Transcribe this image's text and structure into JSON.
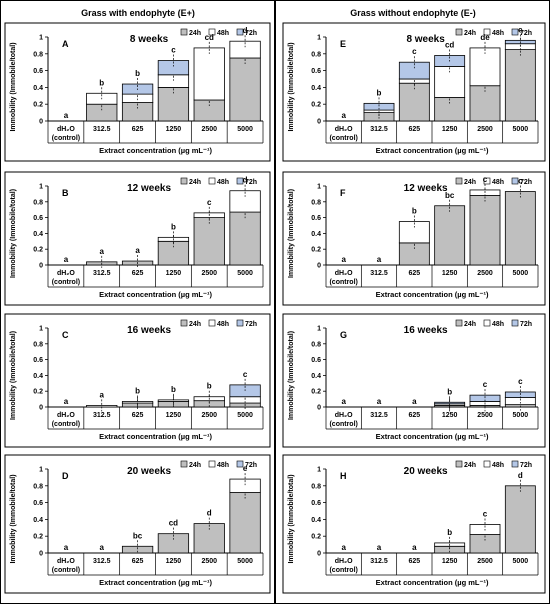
{
  "headers": {
    "left": "Grass with endophyte (E+)",
    "right": "Grass without endophyte (E-)"
  },
  "legend": {
    "items": [
      "24h",
      "48h",
      "72h"
    ]
  },
  "common": {
    "categories": [
      "dH₂O\n(control)",
      "312.5",
      "625",
      "1250",
      "2500",
      "5000"
    ],
    "xlabel": "Extract concentration (µg mL⁻¹)",
    "ylabel": "Immobility (Immobile/total)",
    "yticks": [
      "0",
      "0.2",
      "0.4",
      "0.6",
      "0.8",
      "1"
    ]
  },
  "colors": {
    "24h": "#bfbfbf",
    "48h": "#ffffff",
    "72h": "#b4c7e7",
    "axis": "#000000",
    "border": "#000000"
  },
  "chart_data": [
    {
      "type": "bar",
      "panel": "A",
      "title": "8 weeks",
      "categories": [
        "dH2O (control)",
        "312.5",
        "625",
        "1250",
        "2500",
        "5000"
      ],
      "ylim": [
        0,
        1
      ],
      "stacked": true,
      "series": [
        {
          "name": "24h",
          "values": [
            0,
            0.2,
            0.22,
            0.4,
            0.25,
            0.75
          ]
        },
        {
          "name": "48h",
          "values": [
            0,
            0.13,
            0.1,
            0.15,
            0.62,
            0.2
          ]
        },
        {
          "name": "72h",
          "values": [
            0,
            0,
            0.12,
            0.17,
            0,
            0
          ]
        }
      ],
      "letters": [
        "a",
        "b",
        "b",
        "c",
        "cd",
        "d"
      ]
    },
    {
      "type": "bar",
      "panel": "B",
      "title": "12 weeks",
      "categories": [
        "dH2O (control)",
        "312.5",
        "625",
        "1250",
        "2500",
        "5000"
      ],
      "ylim": [
        0,
        1
      ],
      "stacked": true,
      "series": [
        {
          "name": "24h",
          "values": [
            0,
            0.04,
            0.05,
            0.3,
            0.6,
            0.67
          ]
        },
        {
          "name": "48h",
          "values": [
            0,
            0,
            0,
            0.05,
            0.06,
            0.27
          ]
        },
        {
          "name": "72h",
          "values": [
            0,
            0,
            0,
            0,
            0,
            0
          ]
        }
      ],
      "letters": [
        "a",
        "a",
        "a",
        "b",
        "c",
        "d"
      ]
    },
    {
      "type": "bar",
      "panel": "C",
      "title": "16 weeks",
      "categories": [
        "dH2O (control)",
        "312.5",
        "625",
        "1250",
        "2500",
        "5000"
      ],
      "ylim": [
        0,
        1
      ],
      "stacked": true,
      "series": [
        {
          "name": "24h",
          "values": [
            0,
            0,
            0.05,
            0.07,
            0.08,
            0.05
          ]
        },
        {
          "name": "48h",
          "values": [
            0,
            0.02,
            0.02,
            0.02,
            0.05,
            0.08
          ]
        },
        {
          "name": "72h",
          "values": [
            0,
            0,
            0,
            0,
            0,
            0.15
          ]
        }
      ],
      "letters": [
        "a",
        "a",
        "b",
        "b",
        "b",
        "c"
      ]
    },
    {
      "type": "bar",
      "panel": "D",
      "title": "20 weeks",
      "categories": [
        "dH2O (control)",
        "312.5",
        "625",
        "1250",
        "2500",
        "5000"
      ],
      "ylim": [
        0,
        1
      ],
      "stacked": true,
      "series": [
        {
          "name": "24h",
          "values": [
            0,
            0,
            0.08,
            0.23,
            0.35,
            0.72
          ]
        },
        {
          "name": "48h",
          "values": [
            0,
            0,
            0,
            0,
            0,
            0.16
          ]
        },
        {
          "name": "72h",
          "values": [
            0,
            0,
            0,
            0,
            0,
            0
          ]
        }
      ],
      "letters": [
        "a",
        "a",
        "bc",
        "cd",
        "d",
        "e"
      ]
    },
    {
      "type": "bar",
      "panel": "E",
      "title": "8 weeks",
      "categories": [
        "dH2O (control)",
        "312.5",
        "625",
        "1250",
        "2500",
        "5000"
      ],
      "ylim": [
        0,
        1
      ],
      "stacked": true,
      "series": [
        {
          "name": "24h",
          "values": [
            0,
            0.1,
            0.45,
            0.28,
            0.42,
            0.85
          ]
        },
        {
          "name": "48h",
          "values": [
            0,
            0.03,
            0.05,
            0.37,
            0.45,
            0.07
          ]
        },
        {
          "name": "72h",
          "values": [
            0,
            0.08,
            0.2,
            0.13,
            0,
            0.04
          ]
        }
      ],
      "letters": [
        "a",
        "b",
        "c",
        "cd",
        "de",
        "e"
      ]
    },
    {
      "type": "bar",
      "panel": "F",
      "title": "12 weeks",
      "categories": [
        "dH2O (control)",
        "312.5",
        "625",
        "1250",
        "2500",
        "5000"
      ],
      "ylim": [
        0,
        1
      ],
      "stacked": true,
      "series": [
        {
          "name": "24h",
          "values": [
            0,
            0,
            0.28,
            0.75,
            0.88,
            0.93
          ]
        },
        {
          "name": "48h",
          "values": [
            0,
            0,
            0.27,
            0,
            0.07,
            0
          ]
        },
        {
          "name": "72h",
          "values": [
            0,
            0,
            0,
            0,
            0,
            0
          ]
        }
      ],
      "letters": [
        "a",
        "a",
        "b",
        "bc",
        "c",
        "c"
      ]
    },
    {
      "type": "bar",
      "panel": "G",
      "title": "16 weeks",
      "categories": [
        "dH2O (control)",
        "312.5",
        "625",
        "1250",
        "2500",
        "5000"
      ],
      "ylim": [
        0,
        1
      ],
      "stacked": true,
      "series": [
        {
          "name": "24h",
          "values": [
            0,
            0,
            0,
            0.02,
            0.02,
            0.03
          ]
        },
        {
          "name": "48h",
          "values": [
            0,
            0,
            0,
            0.02,
            0.05,
            0.09
          ]
        },
        {
          "name": "72h",
          "values": [
            0,
            0,
            0,
            0.02,
            0.08,
            0.07
          ]
        }
      ],
      "letters": [
        "a",
        "a",
        "a",
        "b",
        "c",
        "c"
      ]
    },
    {
      "type": "bar",
      "panel": "H",
      "title": "20 weeks",
      "categories": [
        "dH2O (control)",
        "312.5",
        "625",
        "1250",
        "2500",
        "5000"
      ],
      "ylim": [
        0,
        1
      ],
      "stacked": true,
      "series": [
        {
          "name": "24h",
          "values": [
            0,
            0,
            0,
            0.08,
            0.22,
            0.8
          ]
        },
        {
          "name": "48h",
          "values": [
            0,
            0,
            0,
            0.04,
            0.12,
            0
          ]
        },
        {
          "name": "72h",
          "values": [
            0,
            0,
            0,
            0,
            0,
            0
          ]
        }
      ],
      "letters": [
        "a",
        "a",
        "a",
        "b",
        "c",
        "d"
      ]
    }
  ]
}
